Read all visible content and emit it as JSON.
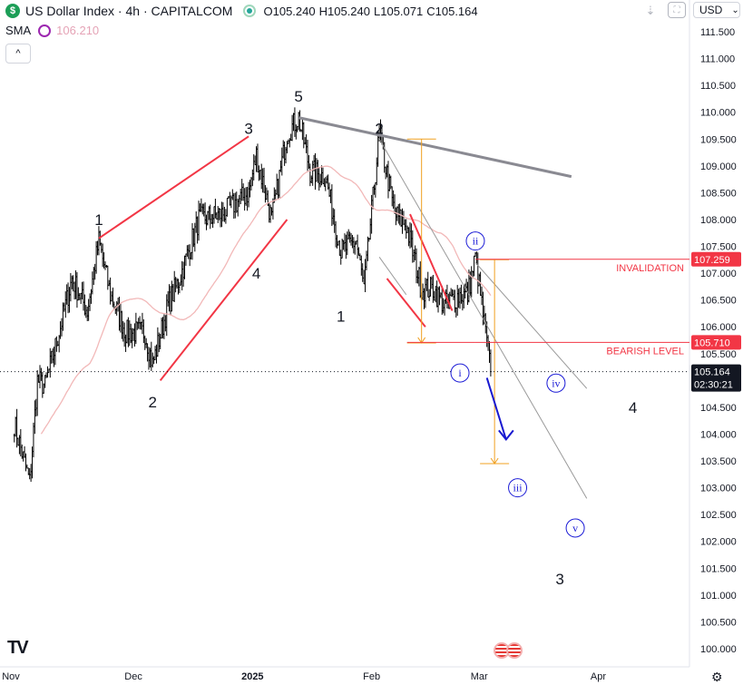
{
  "header": {
    "logo": "$",
    "symbol_line": "US Dollar Index · 4h · CAPITALCOM",
    "ohlc": [
      {
        "k": "O",
        "v": "105.240"
      },
      {
        "k": "H",
        "v": "105.240"
      },
      {
        "k": "L",
        "v": "105.071"
      },
      {
        "k": "C",
        "v": "105.164"
      }
    ],
    "sma_label": "SMA",
    "sma_value": "106.210",
    "collapse_glyph": "^"
  },
  "toolbar": {
    "currency": "USD",
    "currency_chevron": "⌄",
    "download_icon": "download-icon",
    "fullscreen_icon": "fullscreen-icon"
  },
  "branding": {
    "logo": "TV"
  },
  "colors": {
    "candles": "#000000",
    "sma": "#f2b8b8",
    "red_line": "#f23645",
    "gray_line": "#8a8a92",
    "channel": "#9a9a9a",
    "orange": "#f0a020",
    "blue_arrow": "#1818d0",
    "circle": "#1b1bd6"
  },
  "chart_data": {
    "type": "candlestick",
    "ylim": [
      99.7,
      111.9
    ],
    "y_ticks": [
      "111.500",
      "111.000",
      "110.500",
      "110.000",
      "109.500",
      "109.000",
      "108.500",
      "108.000",
      "107.500",
      "107.000",
      "106.500",
      "106.000",
      "105.500",
      "105.000",
      "104.500",
      "104.000",
      "103.500",
      "103.000",
      "102.500",
      "102.000",
      "101.500",
      "101.000",
      "100.500",
      "100.000"
    ],
    "x_labels": [
      "Nov",
      "Dec",
      "2025",
      "Feb",
      "Mar",
      "Apr"
    ],
    "price_path": [
      [
        "2024-10-31",
        104.2
      ],
      [
        "2024-11-04",
        103.1
      ],
      [
        "2024-11-06",
        105.0
      ],
      [
        "2024-11-08",
        104.9
      ],
      [
        "2024-11-12",
        106.0
      ],
      [
        "2024-11-15",
        106.9
      ],
      [
        "2024-11-19",
        106.3
      ],
      [
        "2024-11-22",
        107.6
      ],
      [
        "2024-11-25",
        106.6
      ],
      [
        "2024-11-29",
        105.9
      ],
      [
        "2024-12-04",
        105.9
      ],
      [
        "2024-12-06",
        105.3
      ],
      [
        "2024-12-10",
        106.4
      ],
      [
        "2024-12-13",
        106.9
      ],
      [
        "2024-12-18",
        108.0
      ],
      [
        "2024-12-24",
        108.1
      ],
      [
        "2024-12-31",
        108.5
      ],
      [
        "2025-01-02",
        109.2
      ],
      [
        "2025-01-06",
        108.0
      ],
      [
        "2025-01-10",
        109.6
      ],
      [
        "2025-01-13",
        109.9
      ],
      [
        "2025-01-16",
        108.9
      ],
      [
        "2025-01-20",
        108.8
      ],
      [
        "2025-01-24",
        107.4
      ],
      [
        "2025-01-28",
        107.6
      ],
      [
        "2025-01-30",
        106.7
      ],
      [
        "2025-02-03",
        109.6
      ],
      [
        "2025-02-07",
        108.1
      ],
      [
        "2025-02-10",
        107.9
      ],
      [
        "2025-02-14",
        106.7
      ],
      [
        "2025-02-17",
        106.7
      ],
      [
        "2025-02-20",
        106.4
      ],
      [
        "2025-02-24",
        106.6
      ],
      [
        "2025-02-26",
        106.6
      ],
      [
        "2025-02-28",
        107.3
      ],
      [
        "2025-03-03",
        105.7
      ],
      [
        "2025-03-04",
        105.164
      ]
    ],
    "sma": {
      "name": "SMA",
      "last": 106.21
    },
    "last_price": {
      "value": "105.164",
      "countdown": "02:30:21"
    },
    "levels": [
      {
        "label": "INVALIDATION",
        "value": "107.259"
      },
      {
        "label": "BEARISH LEVEL",
        "value": "105.710"
      }
    ],
    "wave_labels": [
      {
        "text": "1",
        "date": "2024-11-22",
        "price": 108.0,
        "style": "plain"
      },
      {
        "text": "2",
        "date": "2024-12-06",
        "price": 104.6,
        "style": "plain"
      },
      {
        "text": "3",
        "date": "2024-12-31",
        "price": 109.7,
        "style": "plain"
      },
      {
        "text": "4",
        "date": "2025-01-02",
        "price": 107.0,
        "style": "plain"
      },
      {
        "text": "5",
        "date": "2025-01-13",
        "price": 110.3,
        "style": "plain"
      },
      {
        "text": "2",
        "date": "2025-02-03",
        "price": 109.7,
        "style": "plain"
      },
      {
        "text": "1",
        "date": "2025-01-24",
        "price": 106.2,
        "style": "plain"
      },
      {
        "text": "4",
        "date": "2025-04-10",
        "price": 104.5,
        "style": "plain"
      },
      {
        "text": "3",
        "date": "2025-03-22",
        "price": 101.3,
        "style": "plain"
      },
      {
        "text": "ii",
        "date": "2025-02-28",
        "price": 107.6,
        "style": "circle"
      },
      {
        "text": "i",
        "date": "2025-02-24",
        "price": 105.14,
        "style": "circle"
      },
      {
        "text": "iv",
        "date": "2025-03-21",
        "price": 104.95,
        "style": "circle"
      },
      {
        "text": "iii",
        "date": "2025-03-11",
        "price": 103.0,
        "style": "circle"
      },
      {
        "text": "v",
        "date": "2025-03-26",
        "price": 102.25,
        "style": "circle"
      }
    ],
    "lines": [
      {
        "kind": "red",
        "from": [
          "2024-11-22",
          107.65
        ],
        "to": [
          "2024-12-31",
          109.55
        ]
      },
      {
        "kind": "red",
        "from": [
          "2024-12-08",
          105.0
        ],
        "to": [
          "2025-01-10",
          108.0
        ]
      },
      {
        "kind": "red",
        "from": [
          "2025-02-11",
          108.1
        ],
        "to": [
          "2025-02-22",
          106.3
        ]
      },
      {
        "kind": "red",
        "from": [
          "2025-02-05",
          106.9
        ],
        "to": [
          "2025-02-15",
          106.0
        ]
      },
      {
        "kind": "gray-thick",
        "from": [
          "2025-01-13",
          109.9
        ],
        "to": [
          "2025-03-25",
          108.8
        ]
      },
      {
        "kind": "channel",
        "from": [
          "2025-02-03",
          109.5
        ],
        "to": [
          "2025-03-29",
          102.8
        ]
      },
      {
        "kind": "channel",
        "from": [
          "2025-02-28",
          107.2
        ],
        "to": [
          "2025-03-29",
          104.85
        ]
      },
      {
        "kind": "channel",
        "from": [
          "2025-02-03",
          107.3
        ],
        "to": [
          "2025-02-10",
          106.6
        ]
      }
    ],
    "fib_projections": [
      {
        "date": "2025-02-14",
        "from": 109.5,
        "to": 105.7
      },
      {
        "date": "2025-03-05",
        "from": 107.25,
        "to": 103.45
      }
    ],
    "projection_arrow": {
      "from": [
        "2025-03-03",
        105.05
      ],
      "to": [
        "2025-03-08",
        103.9
      ]
    }
  }
}
